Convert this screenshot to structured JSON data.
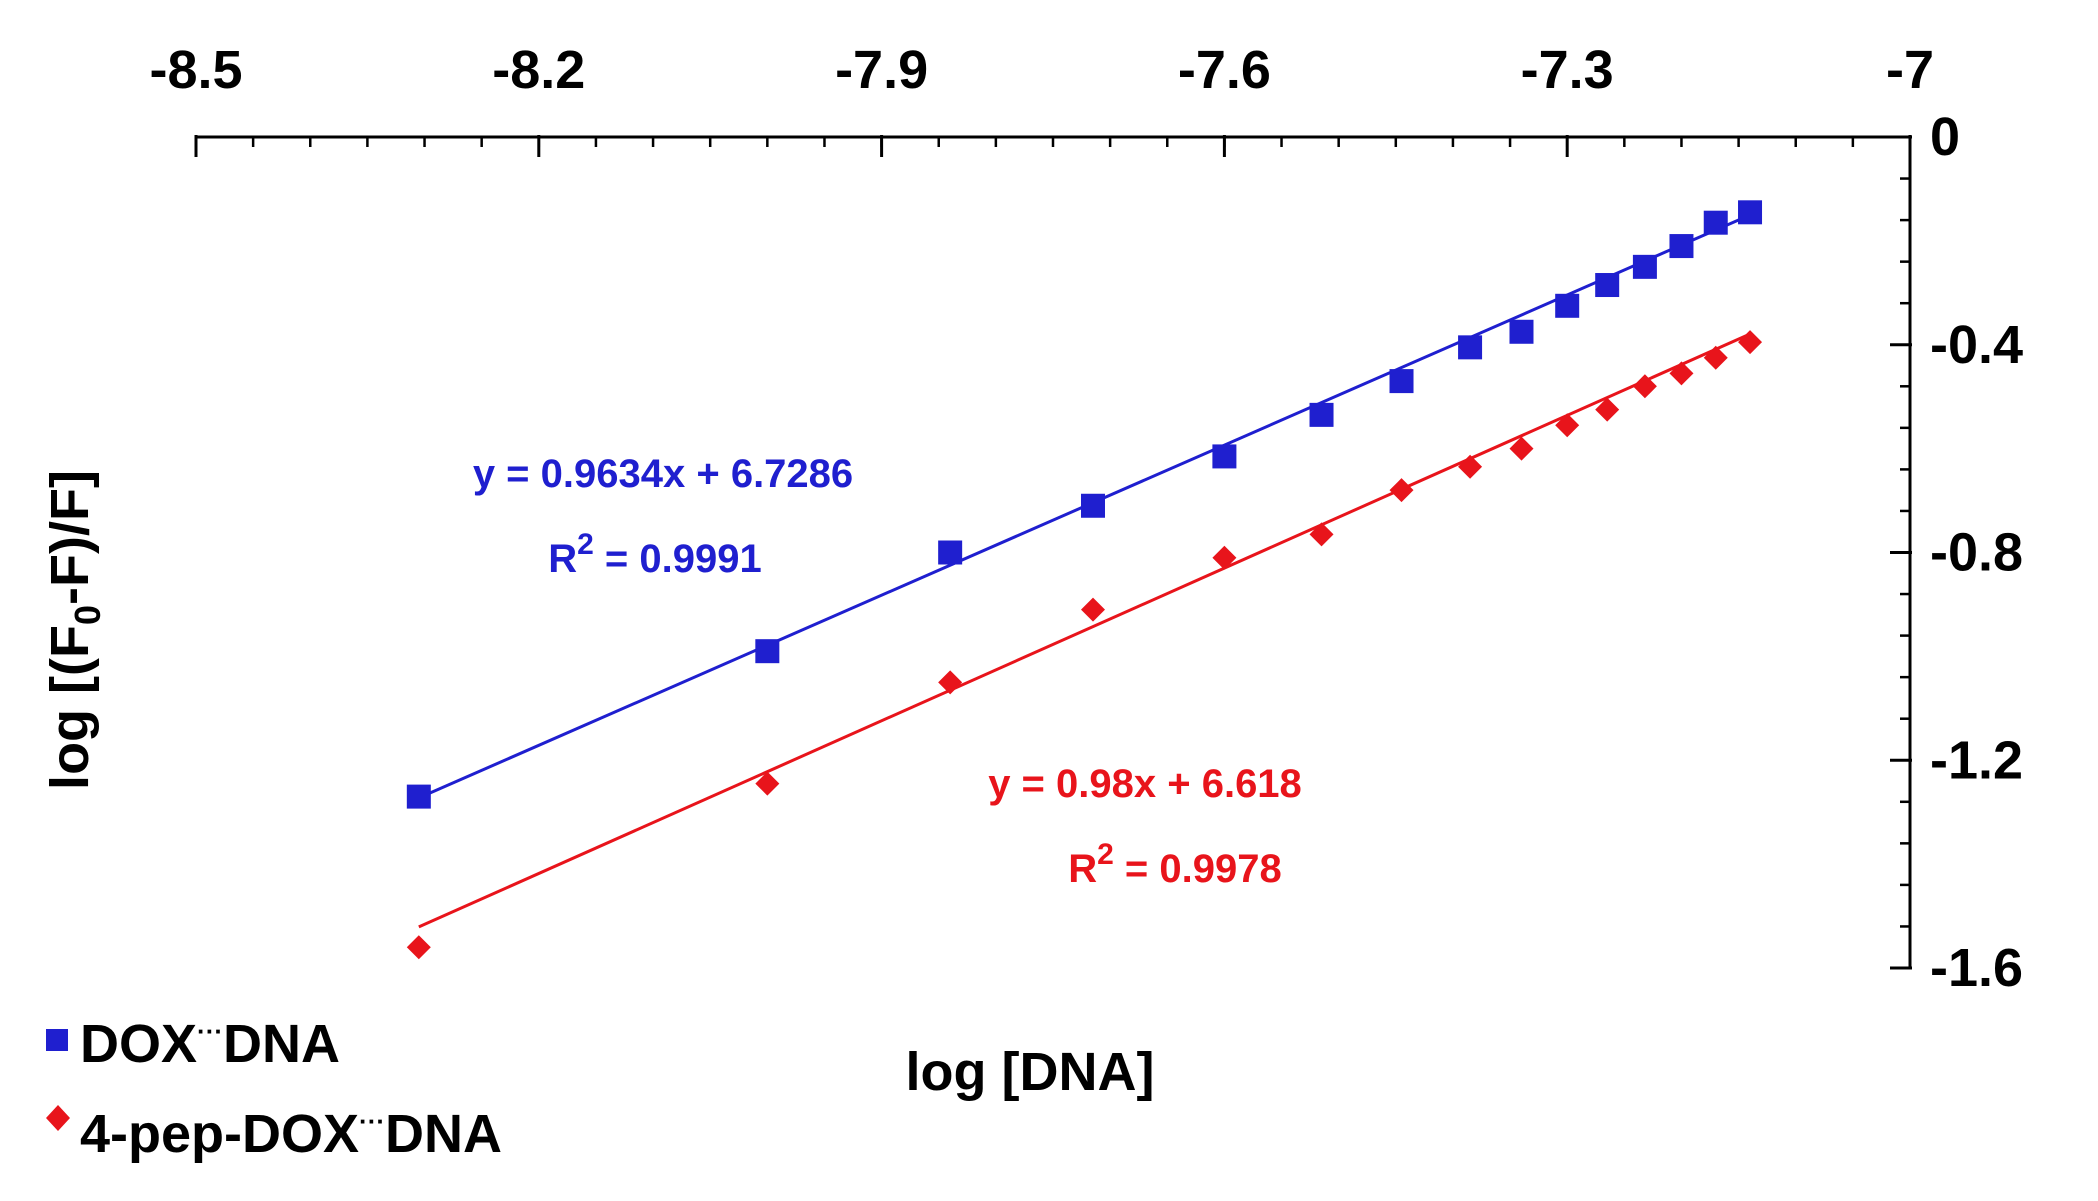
{
  "chart_data": {
    "type": "scatter",
    "title": "",
    "xlabel": "log [DNA]",
    "ylabel_parts": {
      "pre": "log [(F",
      "sub": "0",
      "post": "-F)/F]"
    },
    "xlim": [
      -8.5,
      -7.0
    ],
    "ylim": [
      -1.6,
      0.0
    ],
    "x_ticks": [
      -8.5,
      -8.2,
      -7.9,
      -7.6,
      -7.3,
      -7.0
    ],
    "x_tick_labels": [
      "-8.5",
      "-8.2",
      "-7.9",
      "-7.6",
      "-7.3",
      "-7"
    ],
    "x_minor_step": 0.05,
    "y_ticks": [
      0.0,
      -0.4,
      -0.8,
      -1.2,
      -1.6
    ],
    "y_tick_labels": [
      "0",
      "-0.4",
      "-0.8",
      "-1.2",
      "-1.6"
    ],
    "y_minor_step": 0.08,
    "x_axis_position": "top",
    "y_axis_position": "right",
    "grid": false,
    "legend_position": "bottom-left",
    "series": [
      {
        "name": "DOX",
        "legend_label": {
          "pre": "DOX",
          "dots": "···",
          "post": "DNA"
        },
        "color": "#1f1fcf",
        "marker": "square",
        "x": [
          -8.305,
          -8.0,
          -7.84,
          -7.715,
          -7.6,
          -7.515,
          -7.445,
          -7.385,
          -7.34,
          -7.3,
          -7.265,
          -7.232,
          -7.2,
          -7.17,
          -7.14
        ],
        "y": [
          -1.27,
          -0.99,
          -0.8,
          -0.71,
          -0.615,
          -0.535,
          -0.47,
          -0.405,
          -0.375,
          -0.325,
          -0.285,
          -0.25,
          -0.21,
          -0.165,
          -0.145
        ],
        "fit": {
          "slope": 0.9634,
          "intercept": 6.7286
        },
        "equation_text": "y = 0.9634x + 6.7286",
        "r2_prefix": "R",
        "r2_sup": "2",
        "r2_value": " = 0.9991"
      },
      {
        "name": "4-pep-DOX",
        "legend_label": {
          "pre": "4-pep-DOX",
          "dots": "···",
          "post": "DNA"
        },
        "color": "#e8141b",
        "marker": "diamond",
        "x": [
          -8.305,
          -8.0,
          -7.84,
          -7.715,
          -7.6,
          -7.515,
          -7.445,
          -7.385,
          -7.34,
          -7.3,
          -7.265,
          -7.232,
          -7.2,
          -7.17,
          -7.14
        ],
        "y": [
          -1.56,
          -1.245,
          -1.05,
          -0.91,
          -0.81,
          -0.765,
          -0.68,
          -0.635,
          -0.6,
          -0.555,
          -0.525,
          -0.48,
          -0.455,
          -0.425,
          -0.395
        ],
        "fit": {
          "slope": 0.98,
          "intercept": 6.618
        },
        "equation_text": "y = 0.98x + 6.618",
        "r2_prefix": "R",
        "r2_sup": "2",
        "r2_value": " = 0.9978"
      }
    ]
  }
}
